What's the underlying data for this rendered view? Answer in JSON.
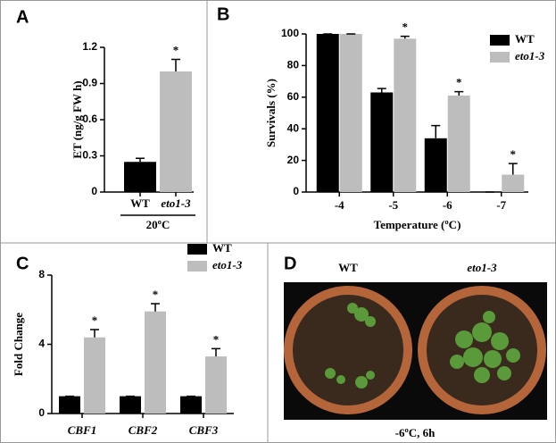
{
  "chart_data": [
    {
      "type": "bar",
      "panel": "A",
      "ylabel": "ET (ng/g FW h)",
      "group_label": "20ºC",
      "categories": [
        "WT",
        "eto1-3"
      ],
      "values": [
        0.25,
        1.0
      ],
      "errors": [
        0.03,
        0.1
      ],
      "colors": [
        "#000000",
        "#bdbdbd"
      ],
      "ylim": [
        0,
        1.2
      ],
      "yticks": [
        0,
        0.3,
        0.6,
        0.9,
        1.2
      ],
      "annotations": [
        {
          "text": "*",
          "category": "eto1-3"
        }
      ]
    },
    {
      "type": "bar",
      "panel": "B",
      "ylabel": "Survivals (%)",
      "xlabel": "Temperature (ºC)",
      "categories": [
        "-4",
        "-5",
        "-6",
        "-7"
      ],
      "series": [
        {
          "name": "WT",
          "color": "#000000",
          "values": [
            100,
            63,
            34,
            0
          ],
          "errors": [
            0,
            2.5,
            8,
            0
          ]
        },
        {
          "name": "eto1-3",
          "color": "#bdbdbd",
          "values": [
            100,
            97,
            61,
            11
          ],
          "errors": [
            0,
            1.5,
            2.5,
            7
          ]
        }
      ],
      "ylim": [
        0,
        100
      ],
      "yticks": [
        0,
        20,
        40,
        60,
        80,
        100
      ],
      "legend": "upper right",
      "annotations": [
        {
          "text": "*",
          "category": "-5"
        },
        {
          "text": "*",
          "category": "-6"
        },
        {
          "text": "*",
          "category": "-7"
        }
      ]
    },
    {
      "type": "bar",
      "panel": "C",
      "ylabel": "Fold Change",
      "categories": [
        "CBF1",
        "CBF2",
        "CBF3"
      ],
      "series": [
        {
          "name": "WT",
          "color": "#000000",
          "values": [
            1,
            1,
            1
          ],
          "errors": [
            0,
            0,
            0
          ]
        },
        {
          "name": "eto1-3",
          "color": "#bdbdbd",
          "values": [
            4.4,
            5.9,
            3.3
          ],
          "errors": [
            0.45,
            0.45,
            0.45
          ]
        }
      ],
      "ylim": [
        0,
        8
      ],
      "yticks": [
        0,
        4,
        8
      ],
      "legend": "upper right",
      "annotations": [
        {
          "text": "*",
          "category": "CBF1"
        },
        {
          "text": "*",
          "category": "CBF2"
        },
        {
          "text": "*",
          "category": "CBF3"
        }
      ]
    }
  ],
  "photo_panel": {
    "panel": "D",
    "labels": [
      "WT",
      "eto1-3"
    ],
    "caption": "-6ºC, 6h"
  }
}
